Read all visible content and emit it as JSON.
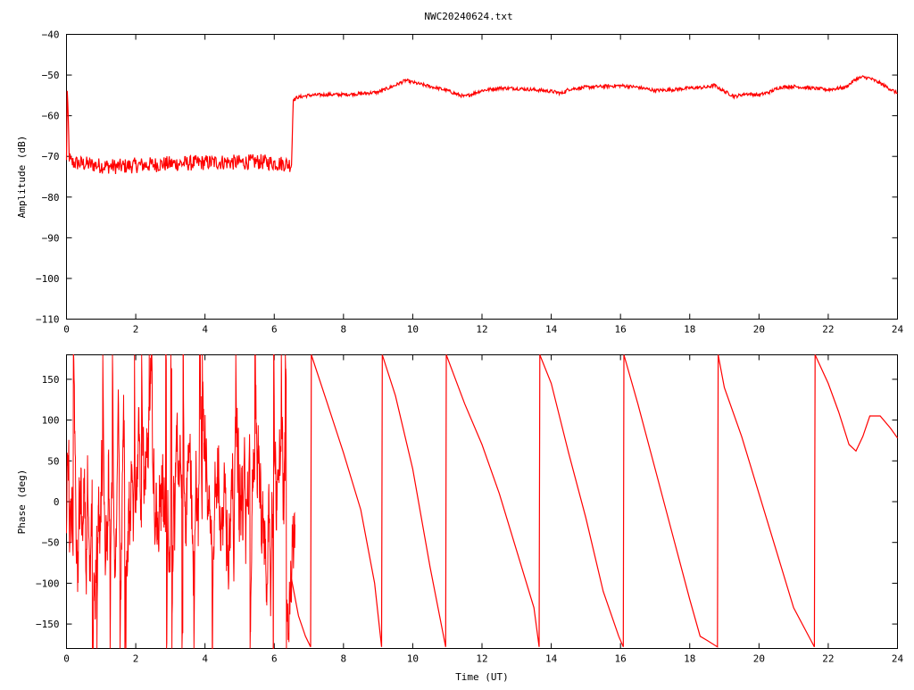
{
  "title": "NWC20240624.txt",
  "colors": {
    "series": "#ff0000",
    "frame": "#000000",
    "background": "#ffffff"
  },
  "chart_data": [
    {
      "type": "line",
      "title": "NWC20240624.txt",
      "xlabel": "",
      "ylabel": "Amplitude (dB)",
      "xlim": [
        0,
        24
      ],
      "ylim": [
        -110,
        -40
      ],
      "x_ticks": [
        "0",
        "2",
        "4",
        "6",
        "8",
        "10",
        "12",
        "14",
        "16",
        "18",
        "20",
        "22",
        "24"
      ],
      "y_ticks": [
        "-40",
        "-50",
        "-60",
        "-70",
        "-80",
        "-90",
        "-100",
        "-110"
      ],
      "grid": false,
      "series": [
        {
          "color": "#ff0000",
          "noise": 1.2,
          "x": [
            0,
            0.02,
            0.05,
            0.08,
            0.12,
            0.5,
            1.0,
            1.5,
            2.0,
            2.5,
            3.0,
            3.5,
            4.0,
            4.5,
            5.0,
            5.5,
            6.0,
            6.3,
            6.5,
            6.55,
            6.6,
            6.65,
            7.0,
            7.5,
            8.0,
            8.5,
            9.0,
            9.5,
            9.8,
            10.0,
            10.5,
            11.0,
            11.3,
            11.5,
            12.0,
            12.5,
            13.0,
            13.5,
            14.0,
            14.3,
            14.5,
            15.0,
            15.5,
            16.0,
            16.5,
            17.0,
            17.5,
            18.0,
            18.5,
            18.7,
            19.0,
            19.3,
            19.6,
            20.0,
            20.3,
            20.6,
            21.0,
            21.5,
            22.0,
            22.5,
            22.8,
            23.0,
            23.2,
            23.5,
            24.0
          ],
          "y": [
            -71,
            -54,
            -60,
            -70,
            -71.5,
            -71.8,
            -72.3,
            -72.5,
            -72.2,
            -72.0,
            -71.8,
            -71.7,
            -71.5,
            -71.4,
            -71.5,
            -71.3,
            -71.6,
            -71.8,
            -72.0,
            -55.8,
            -56.0,
            -55.5,
            -55.0,
            -54.8,
            -54.8,
            -54.6,
            -54.2,
            -52.5,
            -51.3,
            -51.8,
            -52.8,
            -53.8,
            -54.8,
            -55.3,
            -53.8,
            -53.2,
            -53.3,
            -53.6,
            -54.0,
            -54.5,
            -53.5,
            -53.0,
            -52.8,
            -52.6,
            -53.0,
            -53.8,
            -53.6,
            -53.2,
            -53.0,
            -52.5,
            -54.0,
            -55.3,
            -54.6,
            -54.9,
            -54.2,
            -53.0,
            -52.8,
            -53.2,
            -53.6,
            -53.0,
            -51.0,
            -50.5,
            -50.8,
            -52.0,
            -54.5
          ]
        }
      ]
    },
    {
      "type": "line",
      "title": "",
      "xlabel": "Time (UT)",
      "ylabel": "Phase (deg)",
      "xlim": [
        0,
        24
      ],
      "ylim": [
        -180,
        180
      ],
      "x_ticks": [
        "0",
        "2",
        "4",
        "6",
        "8",
        "10",
        "12",
        "14",
        "16",
        "18",
        "20",
        "22",
        "24"
      ],
      "y_ticks": [
        "150",
        "100",
        "50",
        "0",
        "-50",
        "-100",
        "-150"
      ],
      "grid": false,
      "noisy_segment": {
        "x_start": 0,
        "x_end": 6.6,
        "y_range": [
          -180,
          180
        ]
      },
      "series": [
        {
          "color": "#ff0000",
          "x": [
            6.5,
            6.7,
            6.9,
            7.05,
            7.07,
            7.5,
            8.0,
            8.5,
            8.9,
            9.1,
            9.12,
            9.5,
            10.0,
            10.5,
            10.95,
            10.97,
            11.5,
            12.0,
            12.5,
            13.0,
            13.5,
            13.65,
            13.67,
            14.0,
            14.5,
            15.0,
            15.5,
            15.95,
            16.08,
            16.1,
            16.5,
            17.0,
            17.5,
            18.0,
            18.3,
            18.5,
            18.8,
            18.82,
            19.0,
            19.5,
            20.0,
            20.5,
            21.0,
            21.5,
            21.6,
            21.62,
            22.0,
            22.3,
            22.6,
            22.8,
            23.0,
            23.2,
            23.5,
            23.8,
            24.0
          ],
          "y": [
            -95,
            -140,
            -165,
            -178,
            180,
            125,
            60,
            -10,
            -100,
            -178,
            180,
            130,
            40,
            -80,
            -178,
            180,
            120,
            70,
            10,
            -60,
            -130,
            -178,
            180,
            145,
            60,
            -20,
            -110,
            -165,
            -178,
            180,
            120,
            40,
            -40,
            -120,
            -165,
            -170,
            -178,
            180,
            140,
            80,
            10,
            -60,
            -130,
            -170,
            -178,
            180,
            145,
            110,
            70,
            62,
            80,
            105,
            105,
            90,
            78
          ]
        }
      ]
    }
  ]
}
